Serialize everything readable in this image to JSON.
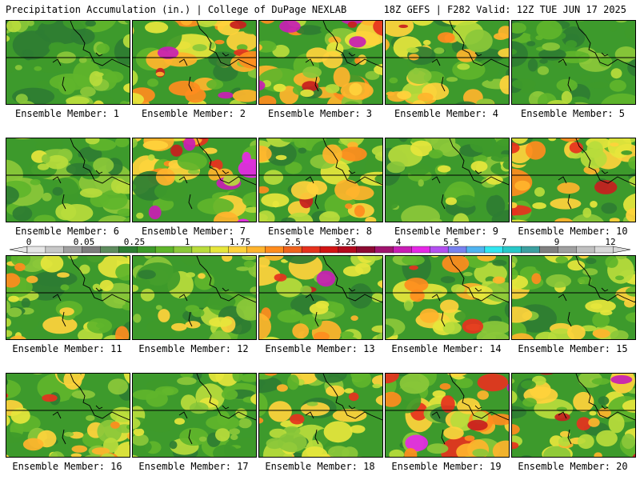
{
  "header": {
    "left": "Precipitation Accumulation (in.) | College of DuPage NEXLAB",
    "right": "18Z GEFS | F282 Valid: 12Z TUE JUN 17 2025"
  },
  "panels": [
    {
      "label": "Ensemble Member: 1",
      "intensity": 0.35
    },
    {
      "label": "Ensemble Member: 2",
      "intensity": 0.8
    },
    {
      "label": "Ensemble Member: 3",
      "intensity": 0.75
    },
    {
      "label": "Ensemble Member: 4",
      "intensity": 0.65
    },
    {
      "label": "Ensemble Member: 5",
      "intensity": 0.3
    },
    {
      "label": "Ensemble Member: 6",
      "intensity": 0.35
    },
    {
      "label": "Ensemble Member: 7",
      "intensity": 0.8
    },
    {
      "label": "Ensemble Member: 8",
      "intensity": 0.65
    },
    {
      "label": "Ensemble Member: 9",
      "intensity": 0.4
    },
    {
      "label": "Ensemble Member: 10",
      "intensity": 0.7
    },
    {
      "label": "Ensemble Member: 11",
      "intensity": 0.55
    },
    {
      "label": "Ensemble Member: 12",
      "intensity": 0.45
    },
    {
      "label": "Ensemble Member: 13",
      "intensity": 0.75
    },
    {
      "label": "Ensemble Member: 14",
      "intensity": 0.6
    },
    {
      "label": "Ensemble Member: 15",
      "intensity": 0.55
    },
    {
      "label": "Ensemble Member: 16",
      "intensity": 0.6
    },
    {
      "label": "Ensemble Member: 17",
      "intensity": 0.4
    },
    {
      "label": "Ensemble Member: 18",
      "intensity": 0.6
    },
    {
      "label": "Ensemble Member: 19",
      "intensity": 0.85
    },
    {
      "label": "Ensemble Member: 20",
      "intensity": 0.7
    }
  ],
  "legend": {
    "tick_labels": [
      "0",
      "0.05",
      "0.25",
      "1",
      "1.75",
      "2.5",
      "3.25",
      "4",
      "5.5",
      "7",
      "9",
      "12"
    ],
    "colors": [
      "#e6e6e6",
      "#c8c8c8",
      "#a0a0a0",
      "#7d7d7d",
      "#5e8c5e",
      "#2e7d32",
      "#3e9a2a",
      "#5fb52b",
      "#8bc83a",
      "#b9dc3c",
      "#e6e63c",
      "#ffd23c",
      "#ffb42d",
      "#ff8c1e",
      "#f0641e",
      "#e6321e",
      "#d21414",
      "#b40a1e",
      "#8c0a32",
      "#a0146e",
      "#c81eb4",
      "#e628e6",
      "#b450f0",
      "#7882f0",
      "#50b4f0",
      "#32e6f0",
      "#28c8c8",
      "#3ca0a0",
      "#808080",
      "#a0a0a0",
      "#c0c0c0",
      "#d8d8d8"
    ]
  }
}
